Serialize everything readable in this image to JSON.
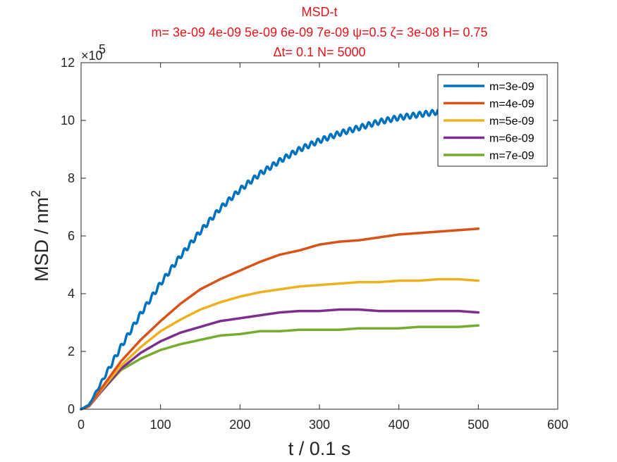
{
  "chart_data": {
    "type": "line",
    "title_lines": [
      "MSD-t",
      "m= 3e-09 4e-09 5e-09 6e-09 7e-09 ψ=0.5 ζ= 3e-08 H= 0.75",
      "Δt= 0.1 N= 5000"
    ],
    "xlabel": "t / 0.1 s",
    "ylabel": "MSD / nm",
    "ylabel_sup": "2",
    "y_multiplier_base": "×10",
    "y_multiplier_exp": "5",
    "xlim": [
      0,
      600
    ],
    "ylim": [
      0,
      12
    ],
    "xticks": [
      "0",
      "100",
      "200",
      "300",
      "400",
      "500",
      "600"
    ],
    "yticks": [
      "0",
      "2",
      "4",
      "6",
      "8",
      "10",
      "12"
    ],
    "grid": false,
    "legend_position": "top-right",
    "series": [
      {
        "name": "m=3e-09",
        "color": "#0072bd",
        "x": [
          0,
          10,
          25,
          50,
          75,
          100,
          125,
          150,
          175,
          200,
          225,
          250,
          275,
          300,
          325,
          350,
          375,
          400,
          425,
          450,
          475,
          500
        ],
        "y": [
          0,
          0.15,
          0.9,
          2.15,
          3.3,
          4.35,
          5.3,
          6.15,
          6.95,
          7.6,
          8.15,
          8.6,
          9.0,
          9.3,
          9.55,
          9.75,
          9.95,
          10.1,
          10.2,
          10.3,
          10.35,
          10.4
        ],
        "wobble": 0.09,
        "period": 8
      },
      {
        "name": "m=4e-09",
        "color": "#d95319",
        "x": [
          0,
          10,
          25,
          50,
          75,
          100,
          125,
          150,
          175,
          200,
          225,
          250,
          275,
          300,
          325,
          350,
          375,
          400,
          425,
          450,
          475,
          500
        ],
        "y": [
          0,
          0.1,
          0.7,
          1.65,
          2.4,
          3.05,
          3.65,
          4.15,
          4.5,
          4.8,
          5.1,
          5.35,
          5.5,
          5.7,
          5.8,
          5.85,
          5.95,
          6.05,
          6.1,
          6.15,
          6.2,
          6.25
        ],
        "wobble": 0,
        "period": 0
      },
      {
        "name": "m=5e-09",
        "color": "#edb120",
        "x": [
          0,
          10,
          25,
          50,
          75,
          100,
          125,
          150,
          175,
          200,
          225,
          250,
          275,
          300,
          325,
          350,
          375,
          400,
          425,
          450,
          475,
          500
        ],
        "y": [
          0,
          0.1,
          0.65,
          1.5,
          2.15,
          2.7,
          3.1,
          3.45,
          3.7,
          3.9,
          4.05,
          4.15,
          4.25,
          4.3,
          4.35,
          4.4,
          4.4,
          4.45,
          4.45,
          4.5,
          4.5,
          4.45
        ],
        "wobble": 0,
        "period": 0
      },
      {
        "name": "m=6e-09",
        "color": "#7e2f8e",
        "x": [
          0,
          10,
          25,
          50,
          75,
          100,
          125,
          150,
          175,
          200,
          225,
          250,
          275,
          300,
          325,
          350,
          375,
          400,
          425,
          450,
          475,
          500
        ],
        "y": [
          0,
          0.1,
          0.6,
          1.4,
          1.95,
          2.35,
          2.65,
          2.85,
          3.05,
          3.15,
          3.25,
          3.35,
          3.4,
          3.4,
          3.45,
          3.45,
          3.4,
          3.4,
          3.4,
          3.4,
          3.4,
          3.35
        ],
        "wobble": 0,
        "period": 0
      },
      {
        "name": "m=7e-09",
        "color": "#77ac30",
        "x": [
          0,
          10,
          25,
          50,
          75,
          100,
          125,
          150,
          175,
          200,
          225,
          250,
          275,
          300,
          325,
          350,
          375,
          400,
          425,
          450,
          475,
          500
        ],
        "y": [
          0,
          0.1,
          0.6,
          1.35,
          1.75,
          2.05,
          2.25,
          2.4,
          2.55,
          2.6,
          2.7,
          2.7,
          2.75,
          2.75,
          2.75,
          2.8,
          2.8,
          2.8,
          2.85,
          2.85,
          2.85,
          2.9
        ],
        "wobble": 0,
        "period": 0
      }
    ]
  }
}
